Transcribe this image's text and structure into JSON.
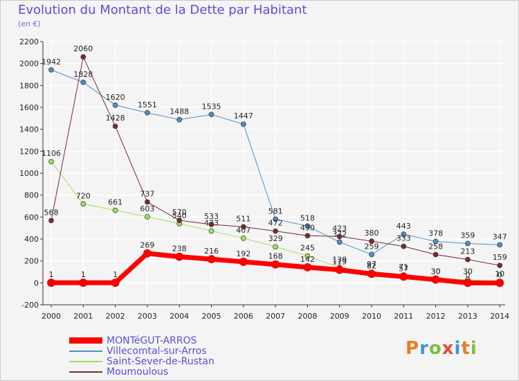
{
  "header": {
    "title": "Evolution du Montant de la Dette par Habitant",
    "subtitle": "(en €)"
  },
  "logo": {
    "text": "Proxiti",
    "colors": [
      "#e67e22",
      "#3a9ad9",
      "#7fbf3f",
      "#e84b3c",
      "#3a9ad9",
      "#e67e22",
      "#7fbf3f"
    ]
  },
  "chart_data": {
    "type": "line",
    "title": "Evolution du Montant de la Dette par Habitant",
    "subtitle": "(en €)",
    "x": [
      2000,
      2001,
      2002,
      2003,
      2004,
      2005,
      2006,
      2007,
      2008,
      2009,
      2010,
      2011,
      2012,
      2013,
      2014
    ],
    "ylim": [
      -200,
      2200
    ],
    "yticks": [
      -200,
      0,
      200,
      400,
      600,
      800,
      1000,
      1200,
      1400,
      1600,
      1800,
      2000,
      2200
    ],
    "grid": true,
    "legend_position": "bottom-left",
    "series": [
      {
        "name": "Villecomtal-sur-Arros",
        "color": "#4a90c8",
        "width": 1,
        "values": [
          1942,
          1828,
          1620,
          1551,
          1488,
          1535,
          1447,
          581,
          518,
          372,
          259,
          443,
          378,
          359,
          347
        ]
      },
      {
        "name": "Saint-Sever-de-Rustan",
        "color": "#9ee35a",
        "width": 1,
        "values": [
          1106,
          720,
          661,
          603,
          540,
          473,
          407,
          329,
          245,
          139,
          97,
          71,
          30,
          30,
          10
        ]
      },
      {
        "name": "Moumoulous",
        "color": "#7a2a2a",
        "width": 1,
        "values": [
          568,
          2060,
          1428,
          737,
          570,
          533,
          511,
          472,
          430,
          423,
          380,
          333,
          258,
          213,
          159
        ]
      },
      {
        "name": "MONTéGUT-ARROS",
        "color": "#ff0000",
        "width": 7,
        "values": [
          1,
          1,
          1,
          269,
          238,
          216,
          192,
          168,
          142,
          119,
          82,
          57,
          30,
          0,
          0
        ]
      }
    ]
  }
}
